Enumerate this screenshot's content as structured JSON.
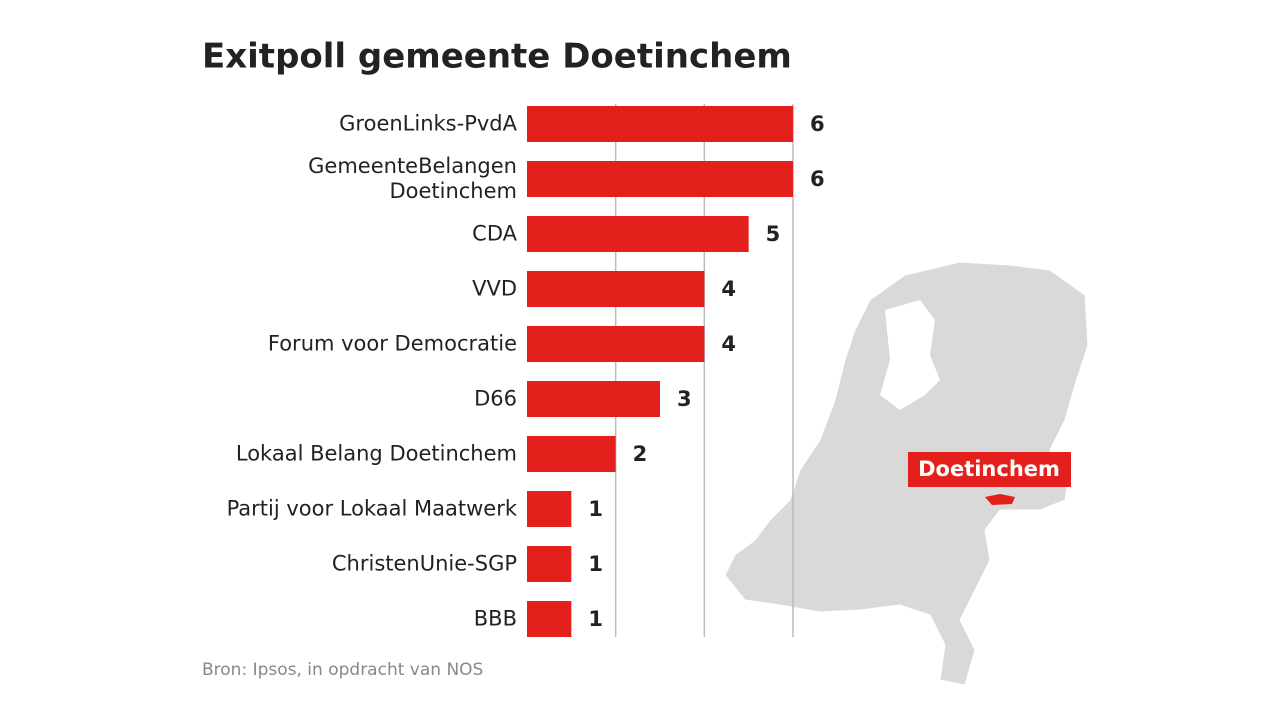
{
  "chart_data": {
    "type": "bar",
    "orientation": "horizontal",
    "title": "Exitpoll gemeente Doetinchem",
    "categories": [
      "GroenLinks-PvdA",
      "GemeenteBelangen\nDoetinchem",
      "CDA",
      "VVD",
      "Forum voor Democratie",
      "D66",
      "Lokaal Belang Doetinchem",
      "Partij voor Lokaal Maatwerk",
      "ChristenUnie-SGP",
      "BBB"
    ],
    "values": [
      6,
      6,
      5,
      4,
      4,
      3,
      2,
      1,
      1,
      1
    ],
    "color": "#e3201b",
    "xlim": [
      0,
      6
    ],
    "xticks": [
      2,
      4,
      6
    ],
    "grid": true,
    "source": "Bron: Ipsos, in opdracht van NOS",
    "map_label": "Doetinchem"
  }
}
